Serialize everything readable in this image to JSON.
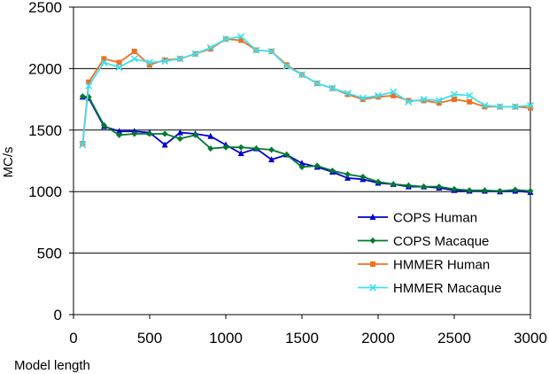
{
  "chart_data": {
    "type": "line",
    "title": "",
    "xlabel": "Model length",
    "ylabel": "MC/s",
    "xlim": [
      0,
      3000
    ],
    "ylim": [
      0,
      2500
    ],
    "x_ticks": [
      "0",
      "500",
      "1000",
      "1500",
      "2000",
      "2500",
      "3000"
    ],
    "y_ticks": [
      "0",
      "500",
      "1000",
      "1500",
      "2000",
      "2500"
    ],
    "grid": "horizontal",
    "legend_position": "bottom-right",
    "series": [
      {
        "name": "COPS Human",
        "color": "#0000cc",
        "marker": "triangle",
        "x": [
          60,
          100,
          200,
          300,
          400,
          500,
          600,
          700,
          800,
          900,
          1000,
          1100,
          1200,
          1300,
          1400,
          1500,
          1600,
          1700,
          1800,
          1900,
          2000,
          2100,
          2200,
          2300,
          2400,
          2500,
          2600,
          2700,
          2800,
          2900,
          3000
        ],
        "y": [
          1770,
          1760,
          1530,
          1490,
          1490,
          1480,
          1380,
          1480,
          1470,
          1450,
          1380,
          1310,
          1350,
          1260,
          1300,
          1230,
          1200,
          1160,
          1110,
          1100,
          1070,
          1060,
          1040,
          1040,
          1030,
          1010,
          1005,
          1005,
          1000,
          1005,
          995
        ]
      },
      {
        "name": "COPS Macaque",
        "color": "#007a2e",
        "marker": "diamond",
        "x": [
          60,
          100,
          200,
          300,
          400,
          500,
          600,
          700,
          800,
          900,
          1000,
          1100,
          1200,
          1300,
          1400,
          1500,
          1600,
          1700,
          1800,
          1900,
          2000,
          2100,
          2200,
          2300,
          2400,
          2500,
          2600,
          2700,
          2800,
          2900,
          3000
        ],
        "y": [
          1775,
          1770,
          1540,
          1460,
          1470,
          1470,
          1470,
          1430,
          1460,
          1350,
          1360,
          1360,
          1350,
          1340,
          1300,
          1200,
          1210,
          1170,
          1140,
          1120,
          1080,
          1060,
          1050,
          1040,
          1040,
          1020,
          1010,
          1010,
          1005,
          1015,
          1005
        ]
      },
      {
        "name": "HMMER Human",
        "color": "#f07020",
        "marker": "square",
        "x": [
          60,
          100,
          200,
          300,
          400,
          500,
          600,
          700,
          800,
          900,
          1000,
          1100,
          1200,
          1300,
          1400,
          1500,
          1600,
          1700,
          1800,
          1900,
          2000,
          2100,
          2200,
          2300,
          2400,
          2500,
          2600,
          2700,
          2800,
          2900,
          3000
        ],
        "y": [
          1390,
          1890,
          2080,
          2050,
          2140,
          2030,
          2070,
          2080,
          2120,
          2160,
          2240,
          2230,
          2150,
          2140,
          2030,
          1950,
          1880,
          1840,
          1790,
          1750,
          1770,
          1780,
          1740,
          1740,
          1720,
          1750,
          1730,
          1690,
          1690,
          1690,
          1680
        ]
      },
      {
        "name": "HMMER Macaque",
        "color": "#40e0f0",
        "marker": "x",
        "x": [
          60,
          100,
          200,
          300,
          400,
          500,
          600,
          700,
          800,
          900,
          1000,
          1100,
          1200,
          1300,
          1400,
          1500,
          1600,
          1700,
          1800,
          1900,
          2000,
          2100,
          2200,
          2300,
          2400,
          2500,
          2600,
          2700,
          2800,
          2900,
          3000
        ],
        "y": [
          1380,
          1860,
          2050,
          2010,
          2080,
          2050,
          2060,
          2080,
          2120,
          2170,
          2240,
          2260,
          2150,
          2140,
          2020,
          1950,
          1880,
          1840,
          1800,
          1760,
          1780,
          1810,
          1730,
          1750,
          1740,
          1790,
          1780,
          1700,
          1690,
          1690,
          1700
        ]
      }
    ]
  }
}
